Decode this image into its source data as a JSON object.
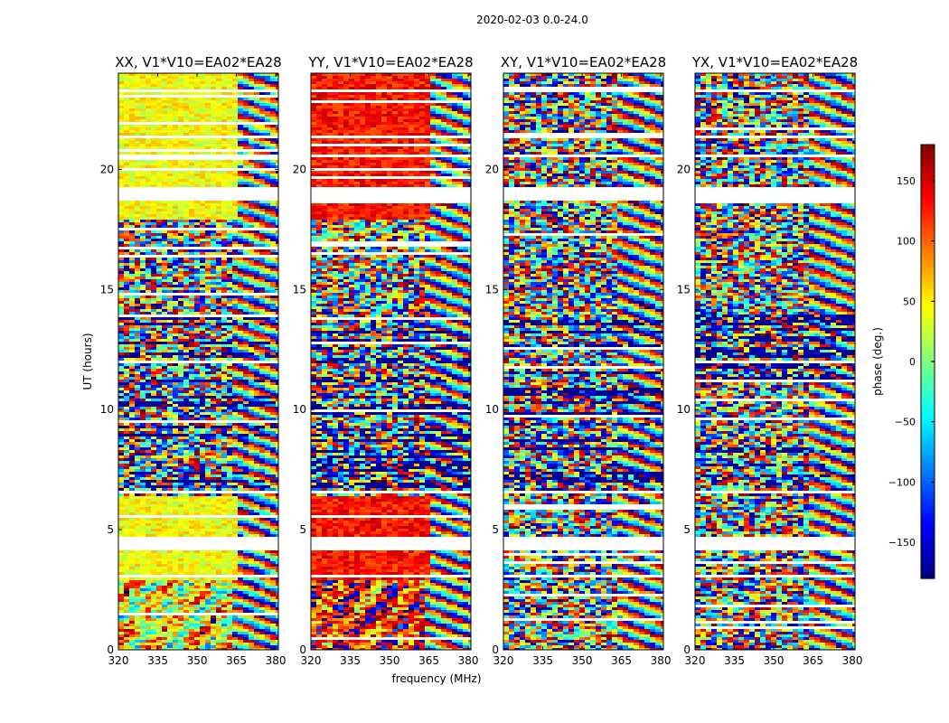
{
  "figure": {
    "suptitle": "2020-02-03 0.0-24.0"
  },
  "chart_data": {
    "type": "heatmap",
    "xlabel": "frequency (MHz)",
    "ylabel": "UT (hours)",
    "xlim": [
      320,
      381
    ],
    "ylim": [
      0,
      24
    ],
    "x_ticks": [
      320,
      335,
      350,
      365,
      380
    ],
    "y_ticks": [
      0,
      5,
      10,
      15,
      20
    ],
    "panels": [
      {
        "title": "XX, V1*V10=EA02*EA28",
        "pol": "XX"
      },
      {
        "title": "YY, V1*V10=EA02*EA28",
        "pol": "YY"
      },
      {
        "title": "XY, V1*V10=EA02*EA28",
        "pol": "XY"
      },
      {
        "title": "YX, V1*V10=EA02*EA28",
        "pol": "YX"
      }
    ],
    "colorbar": {
      "label": "phase (deg.)",
      "colormap": "jet",
      "range": [
        -180,
        180
      ],
      "ticks": [
        150,
        100,
        50,
        0,
        -50,
        -100,
        -150
      ],
      "tick_labels": [
        "150",
        "100",
        "50",
        "0",
        "−50",
        "−100",
        "−150"
      ]
    },
    "flagged_gaps_hours": [
      [
        4.2,
        4.75
      ],
      [
        18.7,
        19.35
      ],
      [
        20.6,
        20.65
      ],
      [
        21.3,
        21.45
      ],
      [
        23.3,
        23.35
      ],
      [
        3.05,
        3.2
      ],
      [
        6.55,
        6.7
      ]
    ]
  }
}
